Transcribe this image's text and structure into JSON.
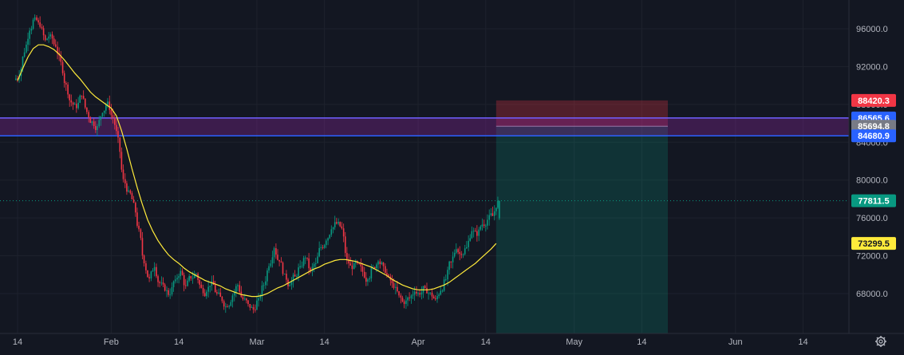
{
  "chart_data": {
    "type": "candlestick",
    "instrument_hint": "",
    "price_axis": {
      "min": 65000,
      "max": 98500,
      "ticks": [
        {
          "value": 96000,
          "label": "96000.0"
        },
        {
          "value": 92000,
          "label": "92000.0"
        },
        {
          "value": 88000,
          "label": "88000.0"
        },
        {
          "value": 84000,
          "label": "84000.0"
        },
        {
          "value": 80000,
          "label": "80000.0"
        },
        {
          "value": 76000,
          "label": "76000.0"
        },
        {
          "value": 72000,
          "label": "72000.0"
        },
        {
          "value": 68000,
          "label": "68000.0"
        }
      ]
    },
    "time_axis": {
      "labels": [
        {
          "day": 0,
          "label": "14"
        },
        {
          "day": 18,
          "label": "Feb"
        },
        {
          "day": 31,
          "label": "14"
        },
        {
          "day": 46,
          "label": "Mar"
        },
        {
          "day": 59,
          "label": "14"
        },
        {
          "day": 77,
          "label": "Apr"
        },
        {
          "day": 90,
          "label": "14"
        },
        {
          "day": 107,
          "label": "May"
        },
        {
          "day": 120,
          "label": "14"
        },
        {
          "day": 138,
          "label": "Jun"
        },
        {
          "day": 151,
          "label": "14"
        }
      ]
    },
    "price_tags": [
      {
        "value": 88420.3,
        "label": "88420.3",
        "bg": "#f23645",
        "fg": "#ffffff"
      },
      {
        "value": 86565.6,
        "label": "86565.6",
        "bg": "#2962ff",
        "fg": "#ffffff"
      },
      {
        "value": 85694.8,
        "label": "85694.8",
        "bg": "#787b86",
        "fg": "#ffffff"
      },
      {
        "value": 84680.9,
        "label": "84680.9",
        "bg": "#2962ff",
        "fg": "#ffffff"
      },
      {
        "value": 77811.5,
        "label": "77811.5",
        "bg": "#089981",
        "fg": "#ffffff"
      },
      {
        "value": 73299.5,
        "label": "73299.5",
        "bg": "#ffeb3b",
        "fg": "#131722"
      }
    ],
    "zone": {
      "upper": 86565.6,
      "lower": 84680.9
    },
    "position_box": {
      "start_day": 92,
      "end_day": 125,
      "stop": 88420.3,
      "entry": 85694.8,
      "target": 65000
    },
    "last_price": 77811.5,
    "moving_average_last": 73299.5,
    "candles_daily_close": [
      91000,
      93500,
      95800,
      97200,
      96200,
      94800,
      95400,
      94100,
      92500,
      90100,
      88200,
      87600,
      88900,
      87200,
      86200,
      85700,
      87100,
      88300,
      86600,
      84500,
      80100,
      78900,
      77600,
      74800,
      71200,
      69600,
      70800,
      69100,
      68300,
      67900,
      69500,
      70400,
      68800,
      69600,
      70100,
      68600,
      68200,
      69300,
      68000,
      67200,
      66600,
      67800,
      68900,
      67400,
      66900,
      66300,
      67500,
      68900,
      70900,
      72800,
      71400,
      70100,
      68900,
      69800,
      70900,
      71800,
      70400,
      71200,
      72900,
      73600,
      74800,
      75400,
      74900,
      71600,
      70600,
      71200,
      70300,
      69500,
      70800,
      71400,
      70900,
      69800,
      68600,
      67800,
      66900,
      67500,
      68200,
      67900,
      68600,
      68100,
      67400,
      68300,
      69500,
      71300,
      72700,
      72100,
      72900,
      74600,
      74100,
      75300,
      75800,
      76200,
      77800
    ],
    "moving_average": [
      90500,
      91800,
      93000,
      93900,
      94300,
      94300,
      94100,
      93800,
      93300,
      92700,
      92000,
      91300,
      90700,
      90000,
      89300,
      88800,
      88400,
      88000,
      87600,
      86800,
      85200,
      83300,
      81200,
      79200,
      77400,
      75800,
      74600,
      73600,
      72800,
      72100,
      71600,
      71200,
      70700,
      70300,
      70000,
      69700,
      69400,
      69200,
      69000,
      68800,
      68500,
      68300,
      68100,
      67900,
      67800,
      67700,
      67700,
      67800,
      68000,
      68300,
      68600,
      68800,
      69100,
      69400,
      69700,
      70000,
      70300,
      70600,
      70800,
      71100,
      71300,
      71500,
      71600,
      71600,
      71500,
      71400,
      71200,
      71000,
      70800,
      70500,
      70200,
      69900,
      69500,
      69200,
      68900,
      68700,
      68500,
      68400,
      68400,
      68400,
      68500,
      68700,
      68900,
      69200,
      69600,
      70000,
      70400,
      70800,
      71200,
      71700,
      72200,
      72700,
      73300
    ]
  }
}
